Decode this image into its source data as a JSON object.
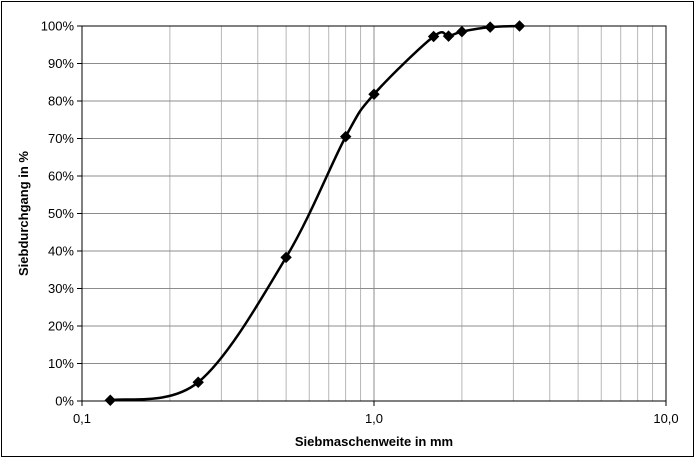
{
  "chart_data": {
    "type": "line",
    "title": "",
    "xlabel": "Siebmaschenweite in mm",
    "ylabel": "Siebdurchgang in %",
    "x_scale": "log",
    "xlim": [
      0.1,
      10
    ],
    "ylim": [
      0,
      100
    ],
    "x_ticks": [
      {
        "value": 0.1,
        "label": "0,1"
      },
      {
        "value": 1,
        "label": "1,0"
      },
      {
        "value": 10,
        "label": "10,0"
      }
    ],
    "y_ticks": [
      {
        "value": 0,
        "label": "0%"
      },
      {
        "value": 10,
        "label": "10%"
      },
      {
        "value": 20,
        "label": "20%"
      },
      {
        "value": 30,
        "label": "30%"
      },
      {
        "value": 40,
        "label": "40%"
      },
      {
        "value": 50,
        "label": "50%"
      },
      {
        "value": 60,
        "label": "60%"
      },
      {
        "value": 70,
        "label": "70%"
      },
      {
        "value": 80,
        "label": "80%"
      },
      {
        "value": 90,
        "label": "90%"
      },
      {
        "value": 100,
        "label": "100%"
      }
    ],
    "grid": true,
    "legend": "none",
    "series": [
      {
        "marker": "diamond",
        "color": "#000000",
        "smooth": true,
        "x": [
          0.125,
          0.25,
          0.5,
          0.8,
          1.0,
          1.6,
          1.8,
          2.0,
          2.5,
          3.15
        ],
        "y": [
          0.2,
          5.0,
          38.3,
          70.5,
          81.8,
          97.2,
          97.3,
          98.5,
          99.7,
          100.0
        ]
      }
    ]
  }
}
